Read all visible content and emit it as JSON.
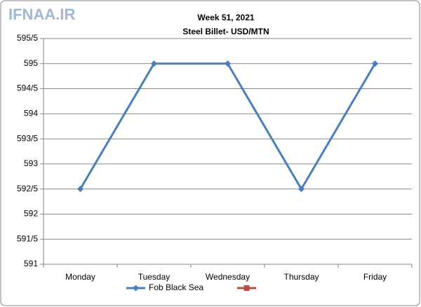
{
  "chart_data": {
    "type": "line",
    "watermark": "IFNAA.IR",
    "title": "Week 51, 2021",
    "subtitle": "Steel Billet- USD/MTN",
    "categories": [
      "Monday",
      "Tuesday",
      "Wednesday",
      "Thursday",
      "Friday"
    ],
    "series": [
      {
        "name": "Fob Black Sea",
        "color": "#4a7ebb",
        "values": [
          592.5,
          595,
          595,
          592.5,
          595
        ]
      },
      {
        "color": "#be4b48",
        "values": [
          null,
          null,
          null,
          null,
          null
        ]
      }
    ],
    "ylim": [
      591,
      595.5
    ],
    "yticks": [
      591,
      {
        "value": 591.5,
        "label": "591/5"
      },
      592,
      {
        "value": 592.5,
        "label": "592/5"
      },
      593,
      {
        "value": 593.5,
        "label": "593/5"
      },
      594,
      {
        "value": 594.5,
        "label": "594/5"
      },
      595,
      {
        "value": 595.5,
        "label": "595/5"
      }
    ],
    "grid": true,
    "legend": "bottom"
  }
}
